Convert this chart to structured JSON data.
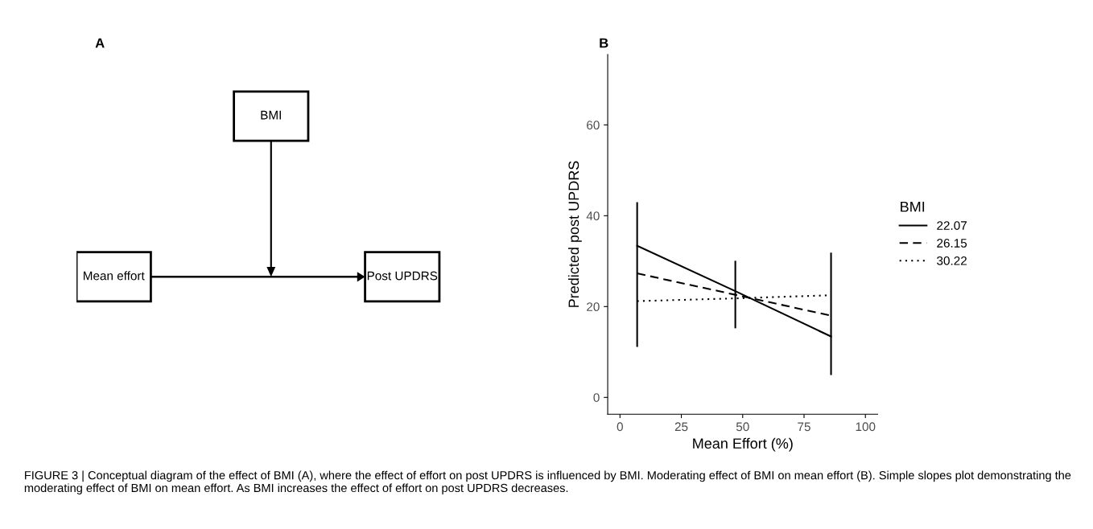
{
  "chart_data": [
    {
      "type": "other",
      "title": "A",
      "annotations": [
        "BMI",
        "Mean effort",
        "Post UPDRS"
      ]
    },
    {
      "type": "line",
      "title": "B",
      "xlabel": "Mean Effort (%)",
      "ylabel": "Predicted post UPDRS",
      "legend_title": "BMI",
      "legend": "right",
      "x": [
        7,
        47,
        86
      ],
      "xlim": [
        -5,
        105
      ],
      "xticks": [
        0,
        25,
        50,
        75,
        100
      ],
      "ylim": [
        -3.7,
        75.5
      ],
      "yticks": [
        0,
        20,
        40,
        60
      ],
      "grid": false,
      "marker": "none",
      "series": [
        {
          "name": "22.07",
          "color": "#000000",
          "line_style": "solid",
          "values": [
            33.4,
            23.4,
            13.4
          ]
        },
        {
          "name": "26.15",
          "color": "#000000",
          "line_style": "dashed",
          "values": [
            27.3,
            22.6,
            18.0
          ],
          "errors": [
            [
              11.3,
              42.8
            ],
            [
              15.4,
              29.9
            ],
            [
              5.1,
              31.7
            ]
          ]
        },
        {
          "name": "30.22",
          "color": "#000000",
          "line_style": "dotted",
          "values": [
            21.2,
            21.8,
            22.5
          ]
        }
      ],
      "annotations": [
        "FIGURE 3 | Conceptual diagram of the effect of BMI (A), where the effect of effort on post UPDRS is influenced by BMI. Moderating effect of BMI on mean effort (B). Simple slopes plot demonstrating the moderating effect of BMI on mean effort. As BMI increases the effect of effort on post UPDRS decreases."
      ]
    }
  ]
}
